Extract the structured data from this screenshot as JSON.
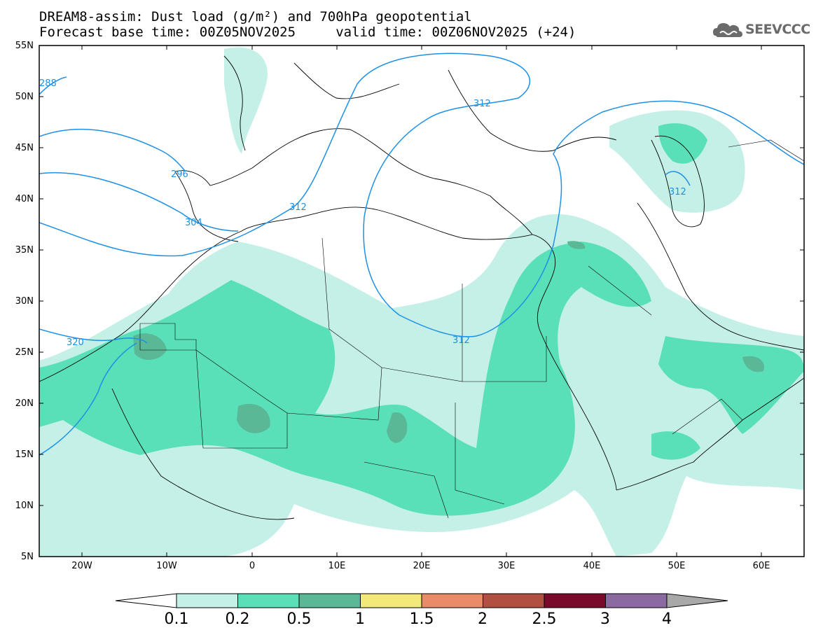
{
  "title": {
    "line1": "DREAM8-assim: Dust load (g/m²) and 700hPa geopotential",
    "line2": "Forecast base time: 00Z05NOV2025     valid time: 00Z06NOV2025 (+24)"
  },
  "logo": {
    "text": "SEEVCCC",
    "icon": "cloud-icon"
  },
  "axes": {
    "lat_labels": [
      "55N",
      "50N",
      "45N",
      "40N",
      "35N",
      "30N",
      "25N",
      "20N",
      "15N",
      "10N",
      "5N"
    ],
    "lon_labels": [
      "20W",
      "10W",
      "0",
      "10E",
      "20E",
      "30E",
      "40E",
      "50E",
      "60E"
    ],
    "lat_range": [
      5,
      55
    ],
    "lon_range": [
      -25,
      65
    ]
  },
  "contours": {
    "labels": [
      "288",
      "296",
      "304",
      "312",
      "312",
      "312",
      "312",
      "320"
    ]
  },
  "colorbar": {
    "levels": [
      "0.1",
      "0.2",
      "0.5",
      "1",
      "1.5",
      "2",
      "2.5",
      "3",
      "4"
    ],
    "colors": [
      "#ffffff",
      "#c4f0e8",
      "#5ae0b8",
      "#5ab897",
      "#f2e97a",
      "#e88b68",
      "#b05040",
      "#7a0a2a",
      "#8a6aa0",
      "#a8a8a8"
    ]
  }
}
